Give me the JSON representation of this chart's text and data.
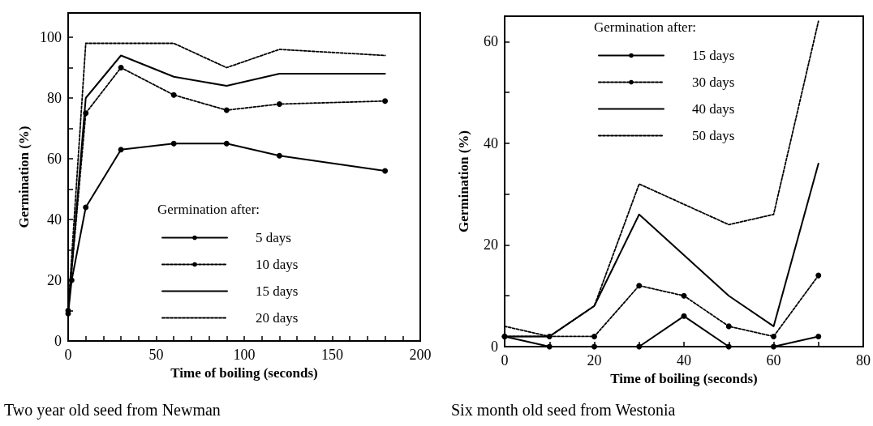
{
  "chart_data": [
    {
      "type": "line",
      "xlabel": "Time of boiling (seconds)",
      "ylabel": "Germination (%)",
      "legend_title": "Germination after:",
      "legend": "bottom",
      "grid": false,
      "xlim": [
        0,
        200
      ],
      "ylim": [
        0,
        108
      ],
      "xticks": [
        0,
        {
          "value": 10,
          "label": null
        },
        {
          "value": 20,
          "label": null
        },
        {
          "value": 30,
          "label": null
        },
        {
          "value": 40,
          "label": null
        },
        50,
        {
          "value": 60,
          "label": null
        },
        {
          "value": 70,
          "label": null
        },
        {
          "value": 80,
          "label": null
        },
        {
          "value": 90,
          "label": null
        },
        100,
        {
          "value": 110,
          "label": null
        },
        {
          "value": 120,
          "label": null
        },
        {
          "value": 130,
          "label": null
        },
        {
          "value": 140,
          "label": null
        },
        150,
        {
          "value": 160,
          "label": null
        },
        {
          "value": 170,
          "label": null
        },
        {
          "value": 180,
          "label": null
        },
        {
          "value": 190,
          "label": null
        },
        200
      ],
      "yticks": [
        0,
        {
          "value": 10,
          "label": null
        },
        20,
        {
          "value": 30,
          "label": null
        },
        40,
        {
          "value": 50,
          "label": null
        },
        60,
        {
          "value": 70,
          "label": null
        },
        80,
        {
          "value": 90,
          "label": null
        },
        100
      ],
      "annotations": [
        "Two year old seed from Newman"
      ],
      "series": [
        {
          "name": "5 days",
          "color": "#000000",
          "line_style": "solid",
          "marker": "circle",
          "x": [
            0,
            2,
            10,
            30,
            60,
            90,
            120,
            180
          ],
          "values": [
            9,
            20,
            44,
            63,
            65,
            65,
            61,
            56
          ]
        },
        {
          "name": "10 days",
          "color": "#000000",
          "line_style": "dotted",
          "marker": "circle",
          "x": [
            0,
            10,
            30,
            60,
            90,
            120,
            180
          ],
          "values": [
            10,
            75,
            90,
            81,
            76,
            78,
            79
          ]
        },
        {
          "name": "15 days",
          "color": "#000000",
          "line_style": "solid",
          "marker": "none",
          "x": [
            0,
            10,
            30,
            60,
            90,
            120,
            180
          ],
          "values": [
            10,
            80,
            94,
            87,
            84,
            88,
            88
          ]
        },
        {
          "name": "20 days",
          "color": "#000000",
          "line_style": "dotted",
          "marker": "none",
          "x": [
            0,
            10,
            30,
            60,
            90,
            120,
            180
          ],
          "values": [
            10,
            98,
            98,
            98,
            90,
            96,
            94
          ]
        }
      ]
    },
    {
      "type": "line",
      "xlabel": "Time of boiling (seconds)",
      "ylabel": "Germination (%)",
      "legend_title": "Germination after:",
      "legend": "top",
      "grid": false,
      "xlim": [
        0,
        80
      ],
      "ylim": [
        0,
        65
      ],
      "xticks": [
        0,
        {
          "value": 10,
          "label": null
        },
        20,
        {
          "value": 30,
          "label": null
        },
        40,
        {
          "value": 50,
          "label": null
        },
        60,
        {
          "value": 70,
          "label": null
        },
        80
      ],
      "yticks": [
        0,
        {
          "value": 10,
          "label": null
        },
        20,
        {
          "value": 30,
          "label": null
        },
        40,
        {
          "value": 50,
          "label": null
        },
        60
      ],
      "annotations": [
        "Six month old seed from Westonia"
      ],
      "series": [
        {
          "name": "15 days",
          "color": "#000000",
          "line_style": "solid",
          "marker": "circle",
          "x": [
            0,
            10,
            20,
            30,
            40,
            50,
            60,
            70
          ],
          "values": [
            2,
            0,
            0,
            0,
            6,
            0,
            0,
            2
          ]
        },
        {
          "name": "30 days",
          "color": "#000000",
          "line_style": "dotted",
          "marker": "circle",
          "x": [
            0,
            10,
            20,
            30,
            40,
            50,
            60,
            70
          ],
          "values": [
            2,
            2,
            2,
            12,
            10,
            4,
            2,
            14
          ]
        },
        {
          "name": "40 days",
          "color": "#000000",
          "line_style": "solid",
          "marker": "none",
          "x": [
            0,
            10,
            20,
            30,
            40,
            50,
            60,
            70
          ],
          "values": [
            2,
            2,
            8,
            26,
            18,
            10,
            4,
            36
          ]
        },
        {
          "name": "50 days",
          "color": "#000000",
          "line_style": "dotted",
          "marker": "none",
          "x": [
            0,
            10,
            20,
            30,
            40,
            50,
            60,
            70
          ],
          "values": [
            4,
            2,
            8,
            32,
            28,
            24,
            26,
            64
          ]
        }
      ]
    }
  ]
}
